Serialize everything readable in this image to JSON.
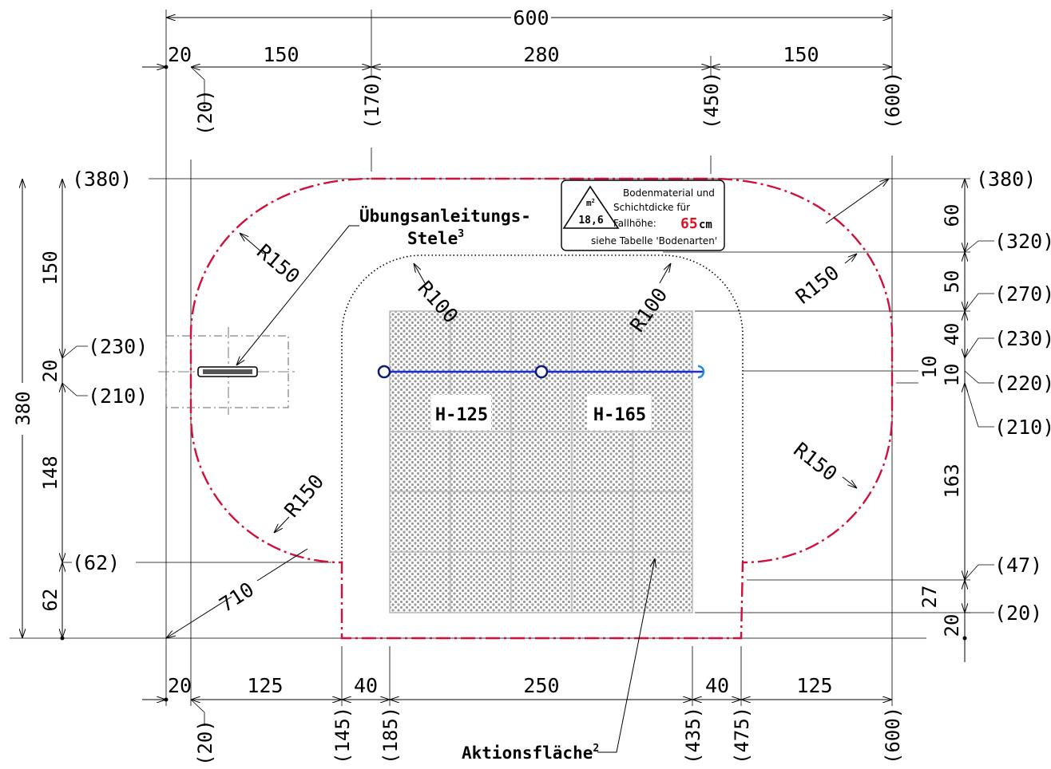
{
  "colors": {
    "boundary": "#d0103a",
    "bar": "#1a2ee0",
    "dots": "#9a9a9a"
  },
  "top_dims": {
    "total": "600",
    "segments": [
      "20",
      "150",
      "280",
      "150"
    ],
    "refs": [
      "(20)",
      "(170)",
      "(450)",
      "(600)"
    ]
  },
  "bottom_dims": {
    "segments": [
      "20",
      "125",
      "40",
      "250",
      "40",
      "125"
    ],
    "refs": [
      "(20)",
      "(145)",
      "(185)",
      "(435)",
      "(475)",
      "(600)"
    ]
  },
  "left_dims": {
    "total": "380",
    "segments": [
      "150",
      "20",
      "148",
      "62"
    ],
    "refs": [
      "(380)",
      "(230)",
      "(210)",
      "(62)"
    ]
  },
  "right_dims": {
    "segments": [
      "60",
      "50",
      "40",
      "10",
      "10",
      "163",
      "27",
      "20"
    ],
    "refs": [
      "(380)",
      "(320)",
      "(270)",
      "(230)",
      "(220)",
      "(210)",
      "(47)",
      "(20)"
    ]
  },
  "radii": {
    "outer": "R150",
    "inner": "R100"
  },
  "diagonal": "710",
  "stele_label": {
    "line1": "Übungsanleitungs-",
    "line2": "Stele",
    "sup": "3"
  },
  "action_label": {
    "text": "Aktionsfläche",
    "sup": "2"
  },
  "heights": {
    "left": "H-125",
    "right": "H-165"
  },
  "info_box": {
    "icon_top": "m",
    "icon_sup": "2",
    "icon_value": "18,6",
    "line1": "Bodenmaterial und",
    "line2": "Schichtdicke für",
    "fall_label": "Fallhöhe:",
    "fall_value": "65",
    "fall_unit": "cm",
    "line4": "siehe Tabelle 'Bodenarten'"
  }
}
